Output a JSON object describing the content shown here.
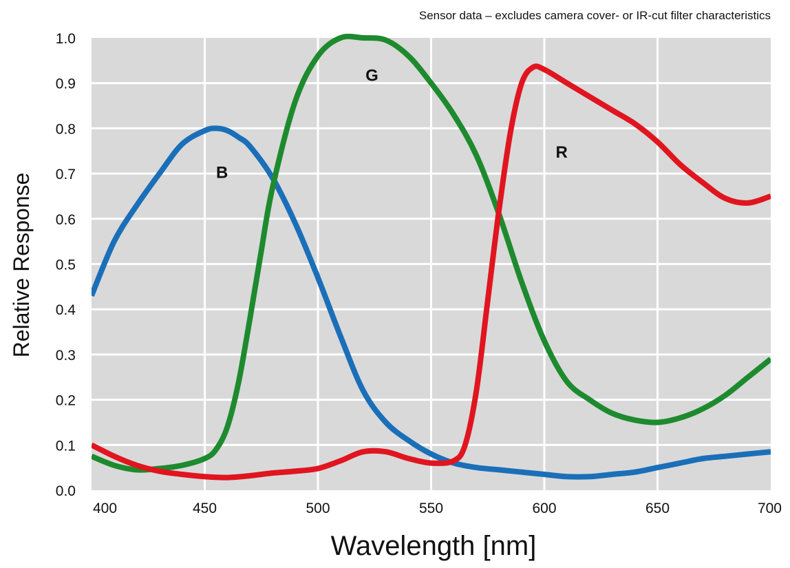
{
  "chart_data": {
    "type": "line",
    "note": "Sensor data – excludes camera cover- or IR-cut filter characteristics",
    "xlabel": "Wavelength [nm]",
    "ylabel": "Relative Response",
    "xlim": [
      400,
      700
    ],
    "ylim": [
      0,
      1.0
    ],
    "xticks": [
      "400",
      "450",
      "500",
      "550",
      "600",
      "650",
      "700"
    ],
    "yticks": [
      "0.0",
      "0.1",
      "0.2",
      "0.3",
      "0.4",
      "0.5",
      "0.6",
      "0.7",
      "0.8",
      "0.9",
      "1.0"
    ],
    "grid": true,
    "background": "#d9d9d9",
    "series": [
      {
        "name": "B",
        "color": "#1a6fb8",
        "x": [
          400,
          410,
          420,
          430,
          440,
          450,
          455,
          460,
          465,
          470,
          480,
          490,
          500,
          510,
          520,
          530,
          540,
          550,
          560,
          570,
          580,
          590,
          600,
          610,
          620,
          630,
          640,
          650,
          660,
          670,
          680,
          690,
          700
        ],
        "y": [
          0.43,
          0.55,
          0.63,
          0.7,
          0.765,
          0.795,
          0.8,
          0.795,
          0.78,
          0.76,
          0.69,
          0.59,
          0.47,
          0.34,
          0.22,
          0.15,
          0.11,
          0.08,
          0.06,
          0.05,
          0.045,
          0.04,
          0.035,
          0.03,
          0.03,
          0.035,
          0.04,
          0.05,
          0.06,
          0.07,
          0.075,
          0.08,
          0.085
        ]
      },
      {
        "name": "G",
        "color": "#1e8a2e",
        "x": [
          400,
          410,
          420,
          430,
          440,
          450,
          455,
          460,
          465,
          470,
          475,
          480,
          490,
          500,
          510,
          520,
          530,
          540,
          550,
          560,
          570,
          580,
          590,
          600,
          610,
          620,
          630,
          640,
          650,
          660,
          670,
          680,
          690,
          700
        ],
        "y": [
          0.075,
          0.055,
          0.045,
          0.048,
          0.055,
          0.07,
          0.09,
          0.14,
          0.24,
          0.38,
          0.53,
          0.67,
          0.86,
          0.96,
          1.0,
          1.0,
          0.995,
          0.96,
          0.9,
          0.83,
          0.74,
          0.61,
          0.46,
          0.33,
          0.24,
          0.2,
          0.17,
          0.155,
          0.15,
          0.16,
          0.18,
          0.21,
          0.25,
          0.29
        ]
      },
      {
        "name": "R",
        "color": "#e0151f",
        "x": [
          400,
          410,
          420,
          430,
          440,
          450,
          460,
          470,
          480,
          490,
          500,
          510,
          520,
          530,
          540,
          550,
          560,
          565,
          570,
          575,
          580,
          585,
          590,
          595,
          600,
          610,
          620,
          630,
          640,
          650,
          660,
          670,
          680,
          690,
          700
        ],
        "y": [
          0.1,
          0.075,
          0.055,
          0.042,
          0.035,
          0.03,
          0.028,
          0.032,
          0.038,
          0.042,
          0.048,
          0.065,
          0.085,
          0.085,
          0.07,
          0.06,
          0.065,
          0.1,
          0.22,
          0.42,
          0.62,
          0.79,
          0.9,
          0.935,
          0.93,
          0.9,
          0.87,
          0.84,
          0.81,
          0.77,
          0.72,
          0.68,
          0.645,
          0.635,
          0.65
        ]
      }
    ]
  }
}
